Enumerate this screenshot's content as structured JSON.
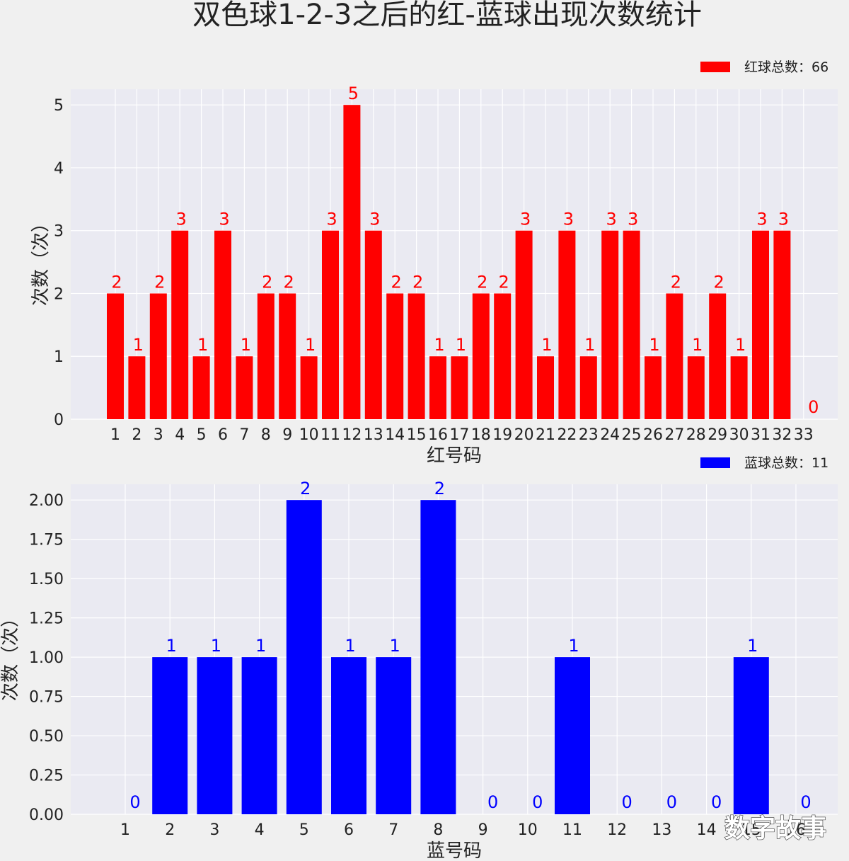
{
  "title": "双色球1-2-3之后的红-蓝球出现次数统计",
  "watermark": "数字故事",
  "colors": {
    "plot_bg": "#eaeaf2",
    "grid": "#ffffff",
    "red": "#ff0000",
    "blue": "#0000ff"
  },
  "chart_data": [
    {
      "type": "bar",
      "xlabel": "红号码",
      "ylabel": "次数（次）",
      "legend": "红球总数：66",
      "legend_position": "top-right",
      "color": "#ff0000",
      "categories": [
        "1",
        "2",
        "3",
        "4",
        "5",
        "6",
        "7",
        "8",
        "9",
        "10",
        "11",
        "12",
        "13",
        "14",
        "15",
        "16",
        "17",
        "18",
        "19",
        "20",
        "21",
        "22",
        "23",
        "24",
        "25",
        "26",
        "27",
        "28",
        "29",
        "30",
        "31",
        "32",
        "33"
      ],
      "values": [
        2,
        1,
        2,
        3,
        1,
        3,
        1,
        2,
        2,
        1,
        3,
        5,
        3,
        2,
        2,
        1,
        1,
        2,
        2,
        3,
        1,
        3,
        1,
        3,
        3,
        1,
        2,
        1,
        2,
        1,
        3,
        3,
        0
      ],
      "yticks": [
        "0",
        "1",
        "2",
        "3",
        "4",
        "5"
      ],
      "ylim": [
        0,
        5.25
      ],
      "grid": true
    },
    {
      "type": "bar",
      "xlabel": "蓝号码",
      "ylabel": "次数（次）",
      "legend": "蓝球总数：11",
      "legend_position": "top-right",
      "color": "#0000ff",
      "categories": [
        "1",
        "2",
        "3",
        "4",
        "5",
        "6",
        "7",
        "8",
        "9",
        "10",
        "11",
        "12",
        "13",
        "14",
        "15",
        "16"
      ],
      "values": [
        0,
        1,
        1,
        1,
        2,
        1,
        1,
        2,
        0,
        0,
        1,
        0,
        0,
        0,
        1,
        0
      ],
      "yticks": [
        "0.00",
        "0.25",
        "0.50",
        "0.75",
        "1.00",
        "1.25",
        "1.50",
        "1.75",
        "2.00"
      ],
      "ylim": [
        0,
        2.1
      ],
      "grid": true
    }
  ]
}
